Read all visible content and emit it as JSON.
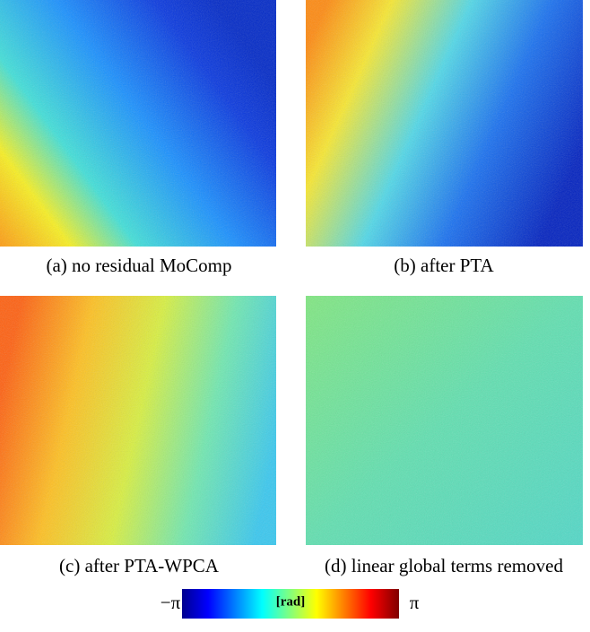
{
  "captions": [
    "(a) no residual MoComp",
    "(b) after PTA",
    "(c) after PTA-WPCA",
    "(d) linear global terms removed"
  ],
  "colorbar": {
    "min_label": "−π",
    "unit": "[rad]",
    "max_label": "π"
  }
}
